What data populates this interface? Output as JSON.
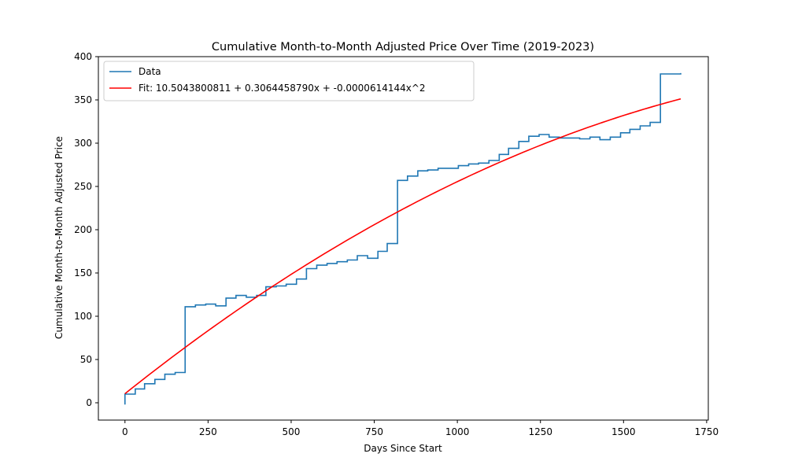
{
  "chart_data": {
    "type": "line",
    "title": "Cumulative Month-to-Month Adjusted Price Over Time (2019-2023)",
    "xlabel": "Days Since Start",
    "ylabel": "Cumulative Month-to-Month Adjusted Price",
    "xlim": [
      -80,
      1755
    ],
    "ylim": [
      -20,
      400
    ],
    "xticks": [
      0,
      250,
      500,
      750,
      1000,
      1250,
      1500,
      1750
    ],
    "yticks": [
      0,
      50,
      100,
      150,
      200,
      250,
      300,
      350,
      400
    ],
    "grid": false,
    "legend_position": "top-left",
    "series": [
      {
        "name": "Data",
        "color": "#1f77b4",
        "style": "steps",
        "x": [
          0,
          0,
          31,
          59,
          90,
          120,
          151,
          181,
          181,
          212,
          243,
          273,
          304,
          334,
          365,
          396,
          424,
          455,
          485,
          516,
          546,
          577,
          608,
          638,
          669,
          699,
          730,
          761,
          789,
          820,
          850,
          881,
          911,
          942,
          973,
          1003,
          1034,
          1064,
          1095,
          1126,
          1154,
          1185,
          1215,
          1246,
          1276,
          1307,
          1338,
          1368,
          1399,
          1429,
          1460,
          1491,
          1519,
          1550,
          1580,
          1611,
          1641,
          1672
        ],
        "y": [
          -2,
          10,
          16,
          22,
          27,
          33,
          35,
          35,
          111,
          113,
          114,
          112,
          121,
          124,
          122,
          124,
          134,
          135,
          137,
          143,
          155,
          159,
          161,
          163,
          165,
          170,
          167,
          175,
          184,
          257,
          262,
          268,
          269,
          271,
          271,
          274,
          276,
          277,
          280,
          287,
          294,
          302,
          308,
          310,
          307,
          306,
          306,
          305,
          307,
          304,
          307,
          312,
          316,
          320,
          324,
          380,
          380,
          381
        ]
      },
      {
        "name": "Fit: 10.5043800811 + 0.3064458790x + -0.0000614144x^2",
        "color": "#ff0000",
        "style": "curve",
        "coefficients": [
          10.5043800811,
          0.306445879,
          -6.14144e-05
        ],
        "x_range": [
          0,
          1672
        ]
      }
    ]
  }
}
